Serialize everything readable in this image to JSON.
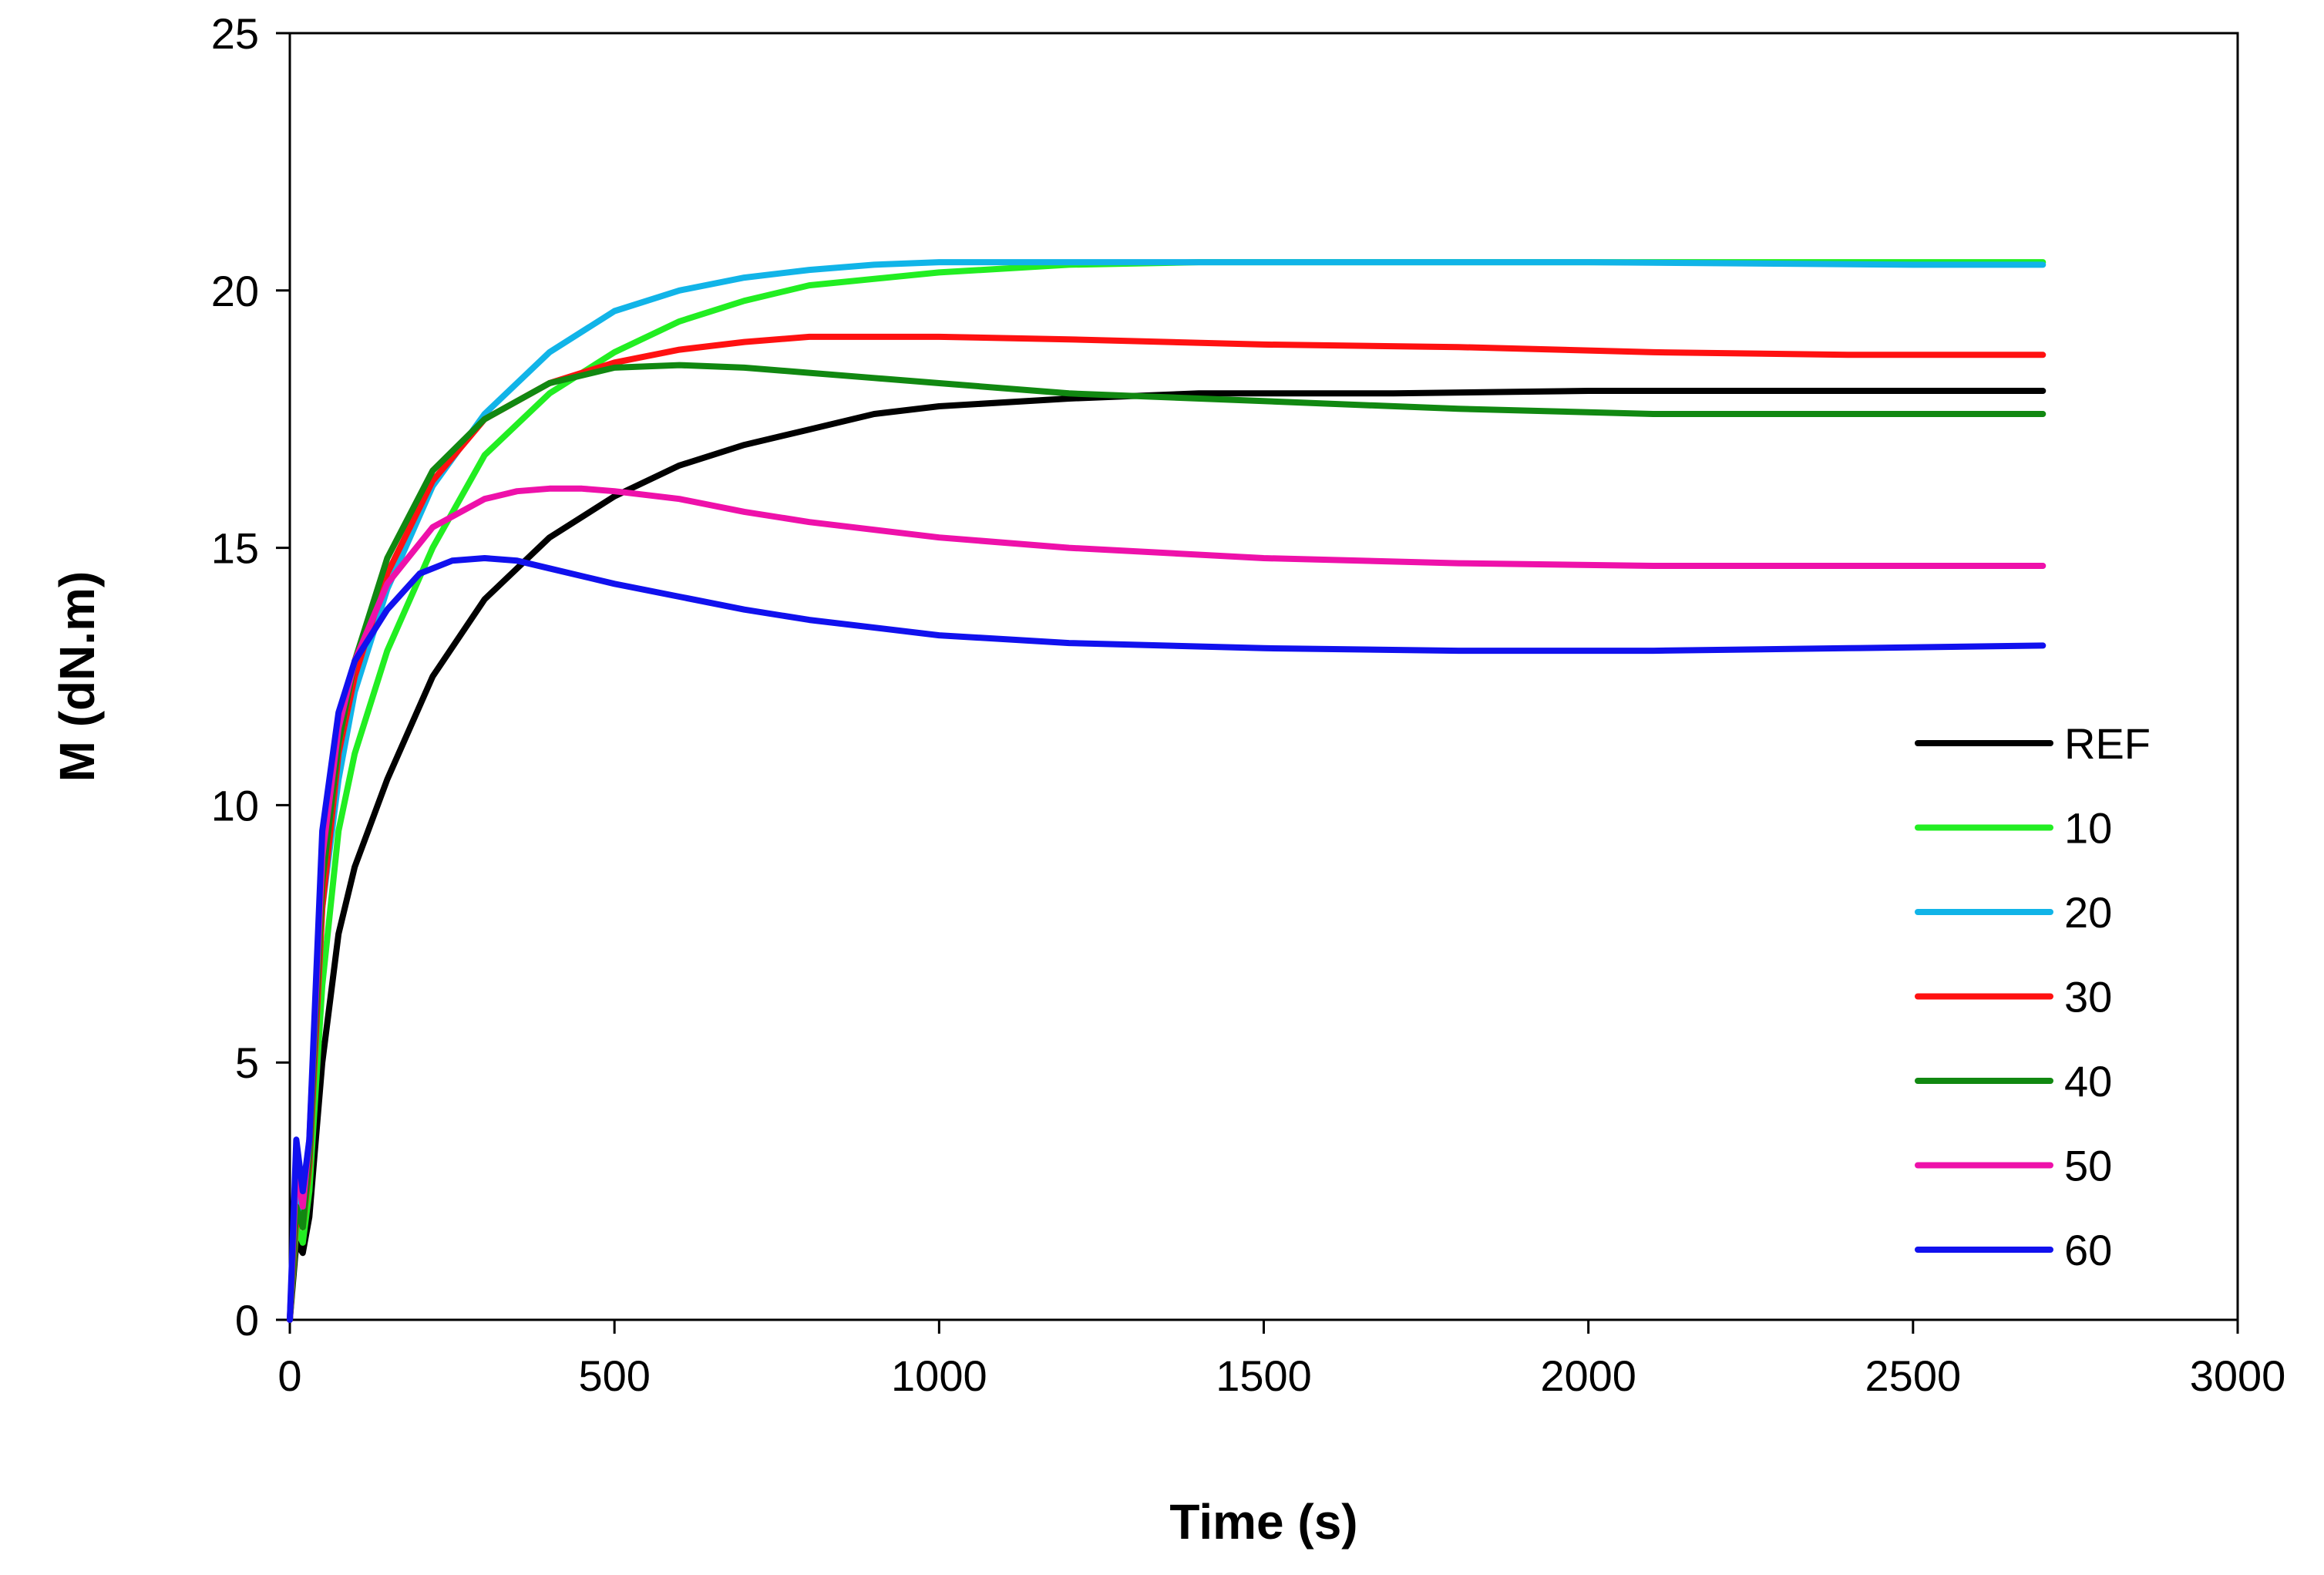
{
  "chart_data": {
    "type": "line",
    "title": "",
    "xlabel": "Time (s)",
    "ylabel": "M (dN.m)",
    "xlim": [
      0,
      3000
    ],
    "ylim": [
      0,
      25
    ],
    "xticks": [
      0,
      500,
      1000,
      1500,
      2000,
      2500,
      3000
    ],
    "yticks": [
      0,
      5,
      10,
      15,
      20,
      25
    ],
    "grid": false,
    "legend_position": "right",
    "series": [
      {
        "name": "REF",
        "color": "#000000",
        "x": [
          0,
          10,
          20,
          30,
          50,
          75,
          100,
          150,
          220,
          300,
          400,
          500,
          600,
          700,
          800,
          900,
          1000,
          1200,
          1400,
          1700,
          2000,
          2300,
          2700
        ],
        "y": [
          0,
          1.5,
          1.3,
          2.0,
          5.0,
          7.5,
          8.8,
          10.5,
          12.5,
          14.0,
          15.2,
          16.0,
          16.6,
          17.0,
          17.3,
          17.6,
          17.75,
          17.9,
          18.0,
          18.0,
          18.05,
          18.05,
          18.05
        ]
      },
      {
        "name": "10",
        "color": "#22ee22",
        "x": [
          0,
          10,
          20,
          30,
          50,
          75,
          100,
          150,
          220,
          300,
          400,
          500,
          600,
          700,
          800,
          1000,
          1200,
          1400,
          1700,
          2000,
          2300,
          2700
        ],
        "y": [
          0,
          1.8,
          1.5,
          2.5,
          6.5,
          9.5,
          11.0,
          13.0,
          15.0,
          16.8,
          18.0,
          18.8,
          19.4,
          19.8,
          20.1,
          20.35,
          20.5,
          20.55,
          20.55,
          20.55,
          20.55,
          20.55
        ]
      },
      {
        "name": "20",
        "color": "#11b4e8",
        "x": [
          0,
          10,
          20,
          30,
          50,
          75,
          100,
          150,
          220,
          300,
          400,
          500,
          600,
          700,
          800,
          900,
          1000,
          1200,
          1500,
          2000,
          2500,
          2700
        ],
        "y": [
          0,
          2.5,
          2.0,
          3.0,
          8.0,
          10.5,
          12.2,
          14.2,
          16.2,
          17.6,
          18.8,
          19.6,
          20.0,
          20.25,
          20.4,
          20.5,
          20.55,
          20.55,
          20.55,
          20.55,
          20.5,
          20.5
        ]
      },
      {
        "name": "30",
        "color": "#ff1111",
        "x": [
          0,
          10,
          20,
          30,
          50,
          75,
          100,
          150,
          220,
          300,
          400,
          500,
          600,
          700,
          800,
          900,
          1000,
          1200,
          1500,
          1800,
          2100,
          2400,
          2700
        ],
        "y": [
          0,
          2.0,
          1.8,
          3.0,
          8.0,
          11.0,
          12.5,
          14.5,
          16.3,
          17.5,
          18.2,
          18.6,
          18.85,
          19.0,
          19.1,
          19.1,
          19.1,
          19.05,
          18.95,
          18.9,
          18.8,
          18.75,
          18.75
        ]
      },
      {
        "name": "40",
        "color": "#118811",
        "x": [
          0,
          10,
          20,
          30,
          50,
          75,
          100,
          150,
          220,
          300,
          400,
          500,
          600,
          700,
          800,
          900,
          1000,
          1200,
          1500,
          1800,
          2100,
          2400,
          2700
        ],
        "y": [
          0,
          2.2,
          1.8,
          3.2,
          8.5,
          11.2,
          12.8,
          14.8,
          16.5,
          17.5,
          18.2,
          18.5,
          18.55,
          18.5,
          18.4,
          18.3,
          18.2,
          18.0,
          17.85,
          17.7,
          17.6,
          17.6,
          17.6
        ]
      },
      {
        "name": "50",
        "color": "#ee11aa",
        "x": [
          0,
          10,
          20,
          30,
          50,
          75,
          100,
          150,
          220,
          300,
          350,
          400,
          450,
          500,
          600,
          700,
          800,
          1000,
          1200,
          1500,
          1800,
          2100,
          2400,
          2700
        ],
        "y": [
          0,
          3.0,
          2.2,
          3.5,
          9.0,
          11.5,
          12.8,
          14.3,
          15.4,
          15.95,
          16.1,
          16.15,
          16.15,
          16.1,
          15.95,
          15.7,
          15.5,
          15.2,
          15.0,
          14.8,
          14.7,
          14.65,
          14.65,
          14.65
        ]
      },
      {
        "name": "60",
        "color": "#1111ee",
        "x": [
          0,
          10,
          20,
          30,
          50,
          75,
          100,
          150,
          200,
          250,
          300,
          350,
          400,
          500,
          600,
          700,
          800,
          1000,
          1200,
          1500,
          1800,
          2100,
          2400,
          2700
        ],
        "y": [
          0,
          3.5,
          2.5,
          3.5,
          9.5,
          11.8,
          12.8,
          13.8,
          14.5,
          14.75,
          14.8,
          14.75,
          14.6,
          14.3,
          14.05,
          13.8,
          13.6,
          13.3,
          13.15,
          13.05,
          13.0,
          13.0,
          13.05,
          13.1
        ]
      }
    ]
  }
}
